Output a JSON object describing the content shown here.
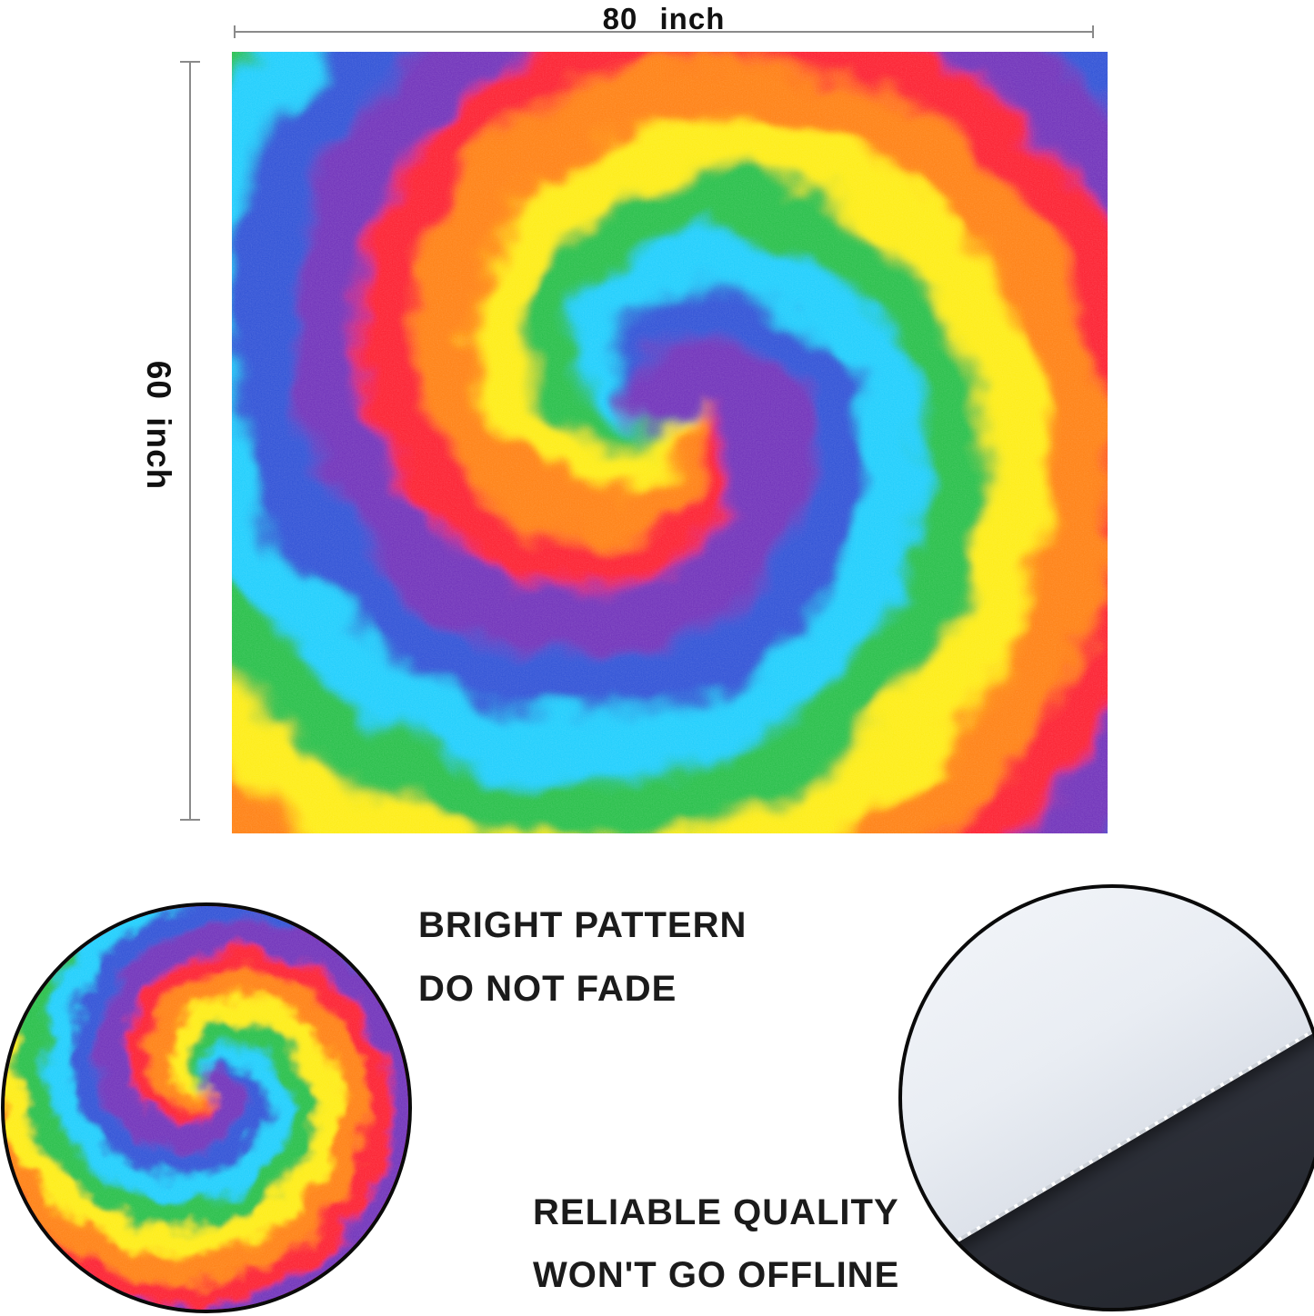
{
  "product": {
    "width_label": "80 inch",
    "height_label": "60 inch"
  },
  "captions": {
    "pattern_line1": "BRIGHT PATTERN",
    "pattern_line2": "DO NOT FADE",
    "quality_line1": "RELIABLE QUALITY",
    "quality_line2": "WON'T GO OFFLINE"
  },
  "tie_dye": {
    "colors": [
      "#d81f2a",
      "#ef7a1f",
      "#f2e32b",
      "#2db04b",
      "#29c0e8",
      "#2b46b8",
      "#5e2a9e"
    ]
  },
  "fabric_inset": {
    "fabric_color": "#f7f9fc",
    "backdrop_color": "#2d3039"
  }
}
